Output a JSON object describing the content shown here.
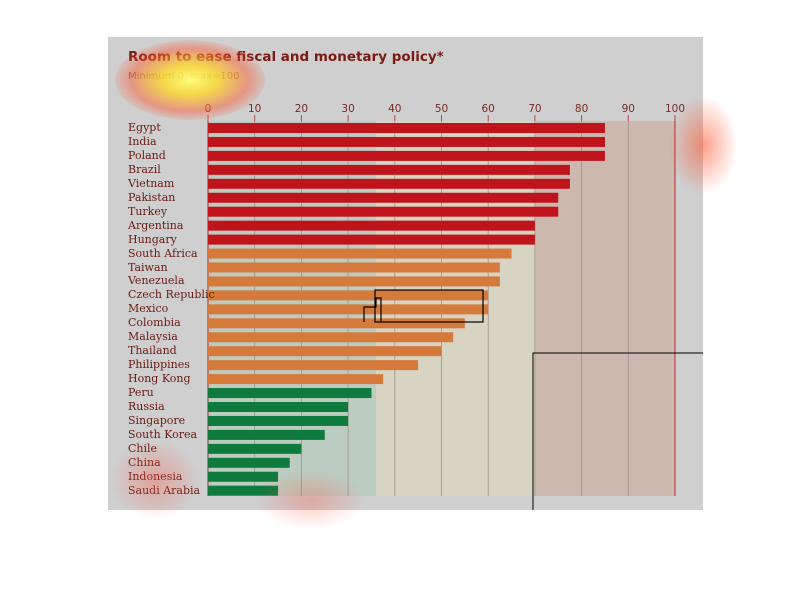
{
  "chart_data": {
    "type": "bar",
    "orientation": "horizontal",
    "title": "Room to ease fiscal and monetary policy*",
    "subtitle": "Minimum 0, max=100",
    "xlim": [
      0,
      100
    ],
    "xticks": [
      0,
      10,
      20,
      30,
      40,
      50,
      60,
      70,
      80,
      90,
      100
    ],
    "categories": [
      "Egypt",
      "India",
      "Poland",
      "Brazil",
      "Vietnam",
      "Pakistan",
      "Turkey",
      "Argentina",
      "Hungary",
      "South Africa",
      "Taiwan",
      "Venezuela",
      "Czech Republic",
      "Mexico",
      "Colombia",
      "Malaysia",
      "Thailand",
      "Philippines",
      "Hong Kong",
      "Peru",
      "Russia",
      "Singapore",
      "South Korea",
      "Chile",
      "China",
      "Indonesia",
      "Saudi Arabia"
    ],
    "values": [
      85,
      85,
      85,
      77.5,
      77.5,
      75,
      75,
      70,
      70,
      65,
      62.5,
      62.5,
      60,
      60,
      55,
      52.5,
      50,
      45,
      37.5,
      35,
      30,
      30,
      25,
      20,
      17.5,
      15,
      15
    ],
    "groups": [
      {
        "color": "#c0141c",
        "from": 0,
        "to": 8
      },
      {
        "color": "#d67a3c",
        "from": 9,
        "to": 18
      },
      {
        "color": "#0e7a3e",
        "from": 19,
        "to": 26
      }
    ],
    "band_colors": {
      "green": "#bcccc0",
      "beige": "#d8d4c4",
      "pink": "#cdb8b0"
    },
    "legend": "none",
    "grid": true
  }
}
